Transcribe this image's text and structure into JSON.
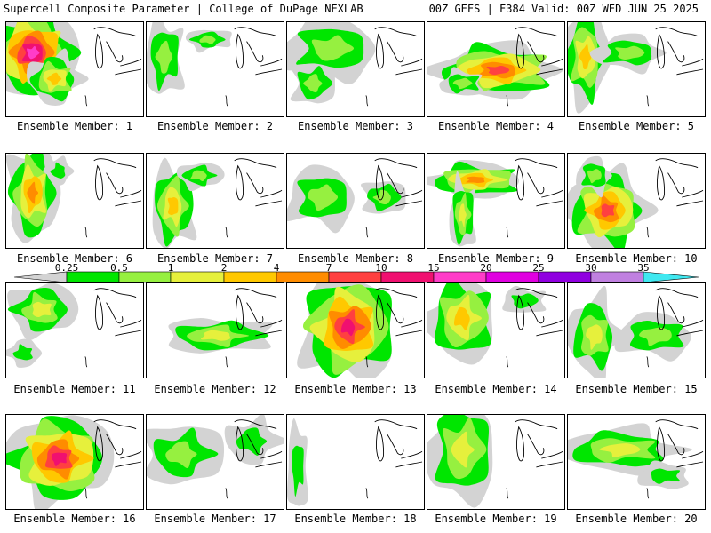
{
  "header": {
    "title_left": "Supercell Composite Parameter | College of DuPage NEXLAB",
    "title_right": "00Z GEFS | F384 Valid: 00Z WED JUN 25 2025"
  },
  "panels": [
    {
      "label": "Ensemble Member: 1"
    },
    {
      "label": "Ensemble Member: 2"
    },
    {
      "label": "Ensemble Member: 3"
    },
    {
      "label": "Ensemble Member: 4"
    },
    {
      "label": "Ensemble Member: 5"
    },
    {
      "label": "Ensemble Member: 6"
    },
    {
      "label": "Ensemble Member: 7"
    },
    {
      "label": "Ensemble Member: 8"
    },
    {
      "label": "Ensemble Member: 9"
    },
    {
      "label": "Ensemble Member: 10"
    },
    {
      "label": "Ensemble Member: 11"
    },
    {
      "label": "Ensemble Member: 12"
    },
    {
      "label": "Ensemble Member: 13"
    },
    {
      "label": "Ensemble Member: 14"
    },
    {
      "label": "Ensemble Member: 15"
    },
    {
      "label": "Ensemble Member: 16"
    },
    {
      "label": "Ensemble Member: 17"
    },
    {
      "label": "Ensemble Member: 18"
    },
    {
      "label": "Ensemble Member: 19"
    },
    {
      "label": "Ensemble Member: 20"
    }
  ],
  "colorbar": {
    "labels": [
      "0.25",
      "0.5",
      "1",
      "2",
      "4",
      "7",
      "10",
      "15",
      "20",
      "25",
      "30",
      "35"
    ],
    "colors": [
      "#d3d3d3",
      "#00e600",
      "#96f040",
      "#e6f03c",
      "#ffc800",
      "#ff8c00",
      "#ff4040",
      "#f01070",
      "#ff3cc8",
      "#e000e0",
      "#9000e0",
      "#c080e0",
      "#40e8f0"
    ]
  }
}
